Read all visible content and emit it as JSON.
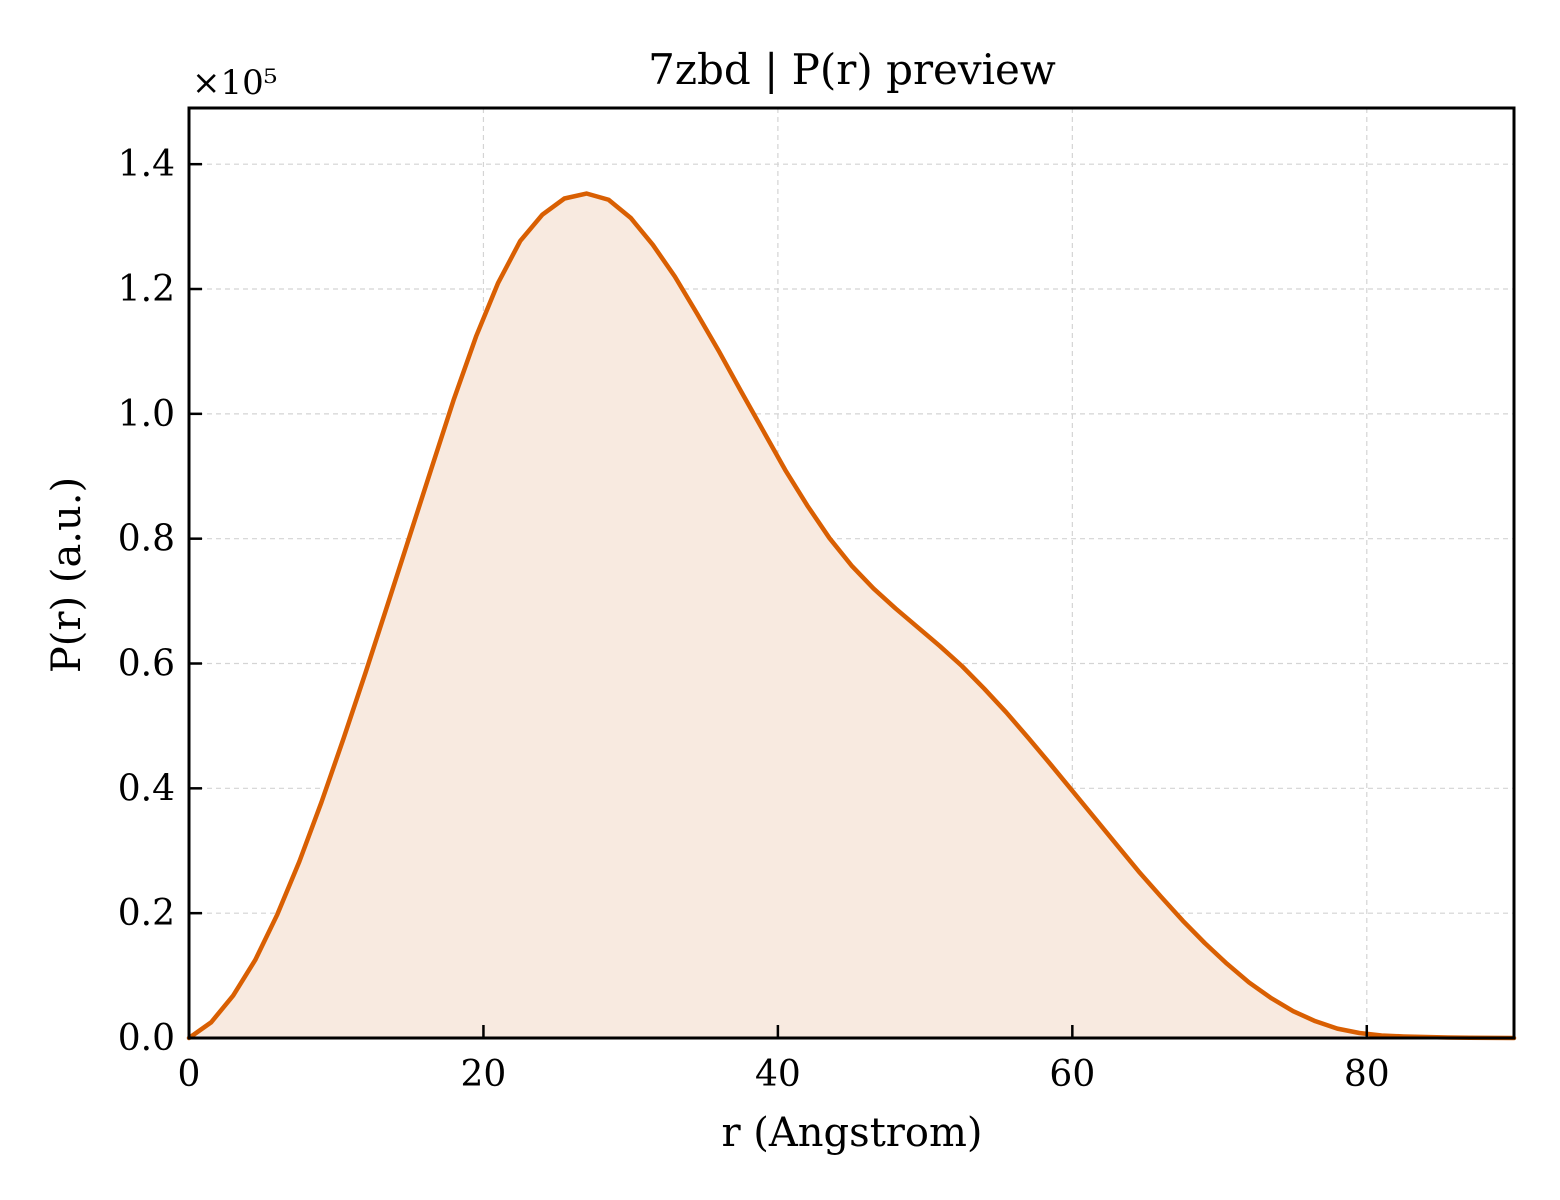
{
  "chart_data": {
    "type": "area",
    "title": "7zbd | P(r) preview",
    "xlabel": "r (Angstrom)",
    "ylabel": "P(r) (a.u.)",
    "y_offset_label": "×10⁵",
    "xlim": [
      0,
      90
    ],
    "ylim": [
      0,
      1.49
    ],
    "y_scale_factor": 100000,
    "grid": true,
    "legend": "none",
    "x_ticks": [
      0,
      20,
      40,
      60,
      80
    ],
    "x_tick_labels": [
      "0",
      "20",
      "40",
      "60",
      "80"
    ],
    "y_ticks": [
      0,
      0.2,
      0.4,
      0.6,
      0.8,
      1.0,
      1.2,
      1.4
    ],
    "y_tick_labels": [
      "0.0",
      "0.2",
      "0.4",
      "0.6",
      "0.8",
      "1.0",
      "1.2",
      "1.4"
    ],
    "line_color": "#d95f02",
    "fill_color": "#f8eae0",
    "series": [
      {
        "x": [
          0,
          1.5,
          3,
          4.5,
          6,
          7.5,
          9,
          10.5,
          12,
          13.5,
          15,
          16.5,
          18,
          19.5,
          21,
          22.5,
          24,
          25.5,
          27,
          28.5,
          30,
          31.5,
          33,
          34.5,
          36,
          37.5,
          39,
          40.5,
          42,
          43.5,
          45,
          46.5,
          48,
          49.5,
          51,
          52.5,
          54,
          55.5,
          57,
          58.5,
          60,
          61.5,
          63,
          64.5,
          66,
          67.5,
          69,
          70.5,
          72,
          73.5,
          75,
          76.5,
          78,
          79.5,
          81,
          82.5,
          84,
          85.5,
          87,
          88.5,
          90
        ],
        "y": [
          0.0,
          0.025,
          0.068,
          0.125,
          0.198,
          0.283,
          0.378,
          0.48,
          0.586,
          0.695,
          0.805,
          0.915,
          1.024,
          1.124,
          1.21,
          1.277,
          1.319,
          1.345,
          1.353,
          1.343,
          1.314,
          1.271,
          1.22,
          1.161,
          1.1,
          1.036,
          0.973,
          0.91,
          0.853,
          0.801,
          0.757,
          0.72,
          0.688,
          0.658,
          0.628,
          0.596,
          0.56,
          0.522,
          0.481,
          0.439,
          0.396,
          0.353,
          0.31,
          0.267,
          0.227,
          0.188,
          0.152,
          0.119,
          0.089,
          0.064,
          0.043,
          0.027,
          0.015,
          0.008,
          0.004,
          0.0025,
          0.0015,
          0.0008,
          0.0004,
          0.0002,
          0.0
        ]
      }
    ]
  }
}
